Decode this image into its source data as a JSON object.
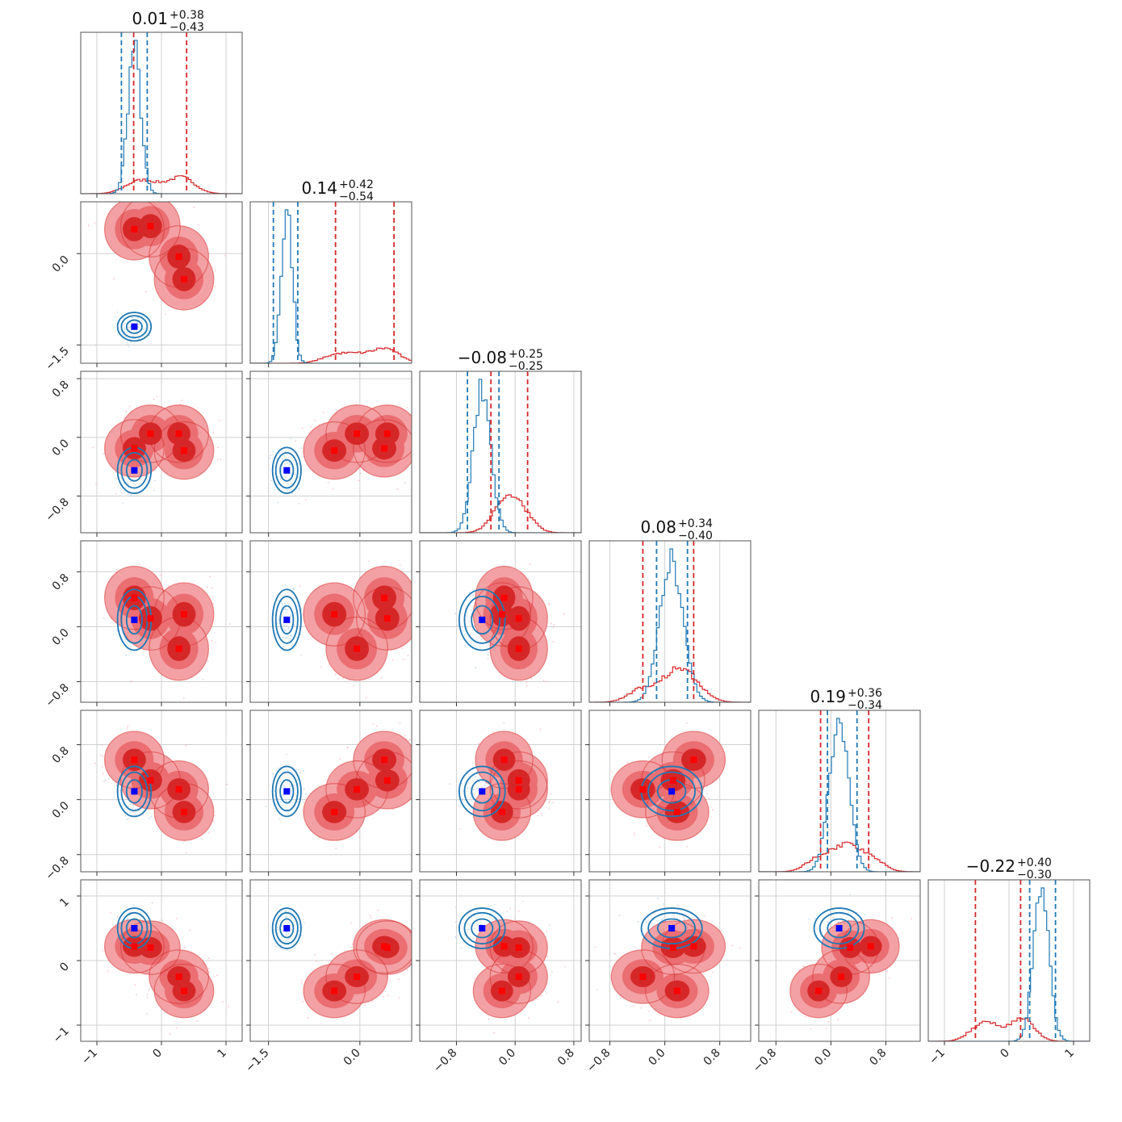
{
  "chart_data": {
    "type": "corner",
    "n_params": 6,
    "colors": {
      "series_a": "#2078b4",
      "series_b": "#d62728",
      "series_b_fill_light": "#ee9a9b",
      "series_b_fill_dark": "#d62728",
      "marker_a": "#0000ff",
      "marker_b": "#ff0000"
    },
    "titles": [
      {
        "median": "0.01",
        "plus": "+0.38",
        "minus": "−0.43"
      },
      {
        "median": "0.14",
        "plus": "+0.42",
        "minus": "−0.54"
      },
      {
        "median": "−0.08",
        "plus": "+0.25",
        "minus": "−0.25"
      },
      {
        "median": "0.08",
        "plus": "+0.34",
        "minus": "−0.40"
      },
      {
        "median": "0.19",
        "plus": "+0.36",
        "minus": "−0.34"
      },
      {
        "median": "−0.22",
        "plus": "+0.40",
        "minus": "−0.30"
      }
    ],
    "params": [
      {
        "range": [
          -1.25,
          1.25
        ],
        "ticks": [
          -1,
          0,
          1
        ],
        "tick_labels": [
          "−1",
          "0",
          "1"
        ]
      },
      {
        "range": [
          -1.8,
          0.85
        ],
        "ticks": [
          -1.5,
          0.0
        ],
        "tick_labels": [
          "−1.5",
          "0.0"
        ]
      },
      {
        "range": [
          -1.3,
          0.9
        ],
        "ticks": [
          -0.8,
          0.0,
          0.8
        ],
        "tick_labels": [
          "−0.8",
          "0.0",
          "0.8"
        ]
      },
      {
        "range": [
          -1.1,
          1.25
        ],
        "ticks": [
          -0.8,
          0.0,
          0.8
        ],
        "tick_labels": [
          "−0.8",
          "0.0",
          "0.8"
        ]
      },
      {
        "range": [
          -1.05,
          1.3
        ],
        "ticks": [
          -0.8,
          0.0,
          0.8
        ],
        "tick_labels": [
          "−0.8",
          "0.0",
          "0.8"
        ]
      },
      {
        "range": [
          -1.25,
          1.25
        ],
        "ticks": [
          -1,
          0,
          1
        ],
        "tick_labels": [
          "−1",
          "0",
          "1"
        ]
      }
    ],
    "series": [
      {
        "name": "",
        "color": "#2078b4",
        "means": [
          -0.42,
          -1.2,
          -0.45,
          0.1,
          0.12,
          0.5
        ],
        "sigmas": [
          0.1,
          0.09,
          0.12,
          0.17,
          0.14,
          0.12
        ],
        "quantile_lines": [
          [
            -0.62,
            -0.22
          ],
          [
            -1.42,
            -1.02
          ],
          [
            -0.65,
            -0.22
          ],
          [
            -0.12,
            0.33
          ],
          [
            -0.05,
            0.38
          ],
          [
            0.32,
            0.72
          ]
        ],
        "marker": "#0000ff"
      },
      {
        "name": "",
        "color": "#d62728",
        "modes": [
          [
            -0.42,
            0.4,
            -0.15,
            0.42,
            0.58,
            0.22
          ],
          [
            -0.17,
            0.45,
            0.05,
            0.12,
            0.28,
            0.2
          ],
          [
            0.27,
            -0.05,
            0.05,
            -0.32,
            0.15,
            -0.25
          ],
          [
            0.35,
            -0.42,
            -0.18,
            0.18,
            -0.18,
            -0.47
          ]
        ],
        "spread": [
          0.2,
          0.22,
          0.17,
          0.2,
          0.18,
          0.18
        ],
        "quantile_lines": [
          [
            -0.43,
            0.39
          ],
          [
            -0.4,
            0.56
          ],
          [
            -0.33,
            0.17
          ],
          [
            -0.32,
            0.42
          ],
          [
            -0.15,
            0.55
          ],
          [
            -0.52,
            0.18
          ]
        ],
        "markers": [
          [
            -0.42,
            0.4,
            -0.15,
            0.42,
            0.58,
            0.22
          ],
          [
            -0.17,
            0.45,
            0.05,
            0.12,
            0.28,
            0.2
          ],
          [
            0.27,
            -0.05,
            0.05,
            -0.32,
            0.15,
            -0.25
          ],
          [
            0.35,
            -0.42,
            -0.18,
            0.18,
            -0.18,
            -0.47
          ]
        ]
      }
    ]
  }
}
